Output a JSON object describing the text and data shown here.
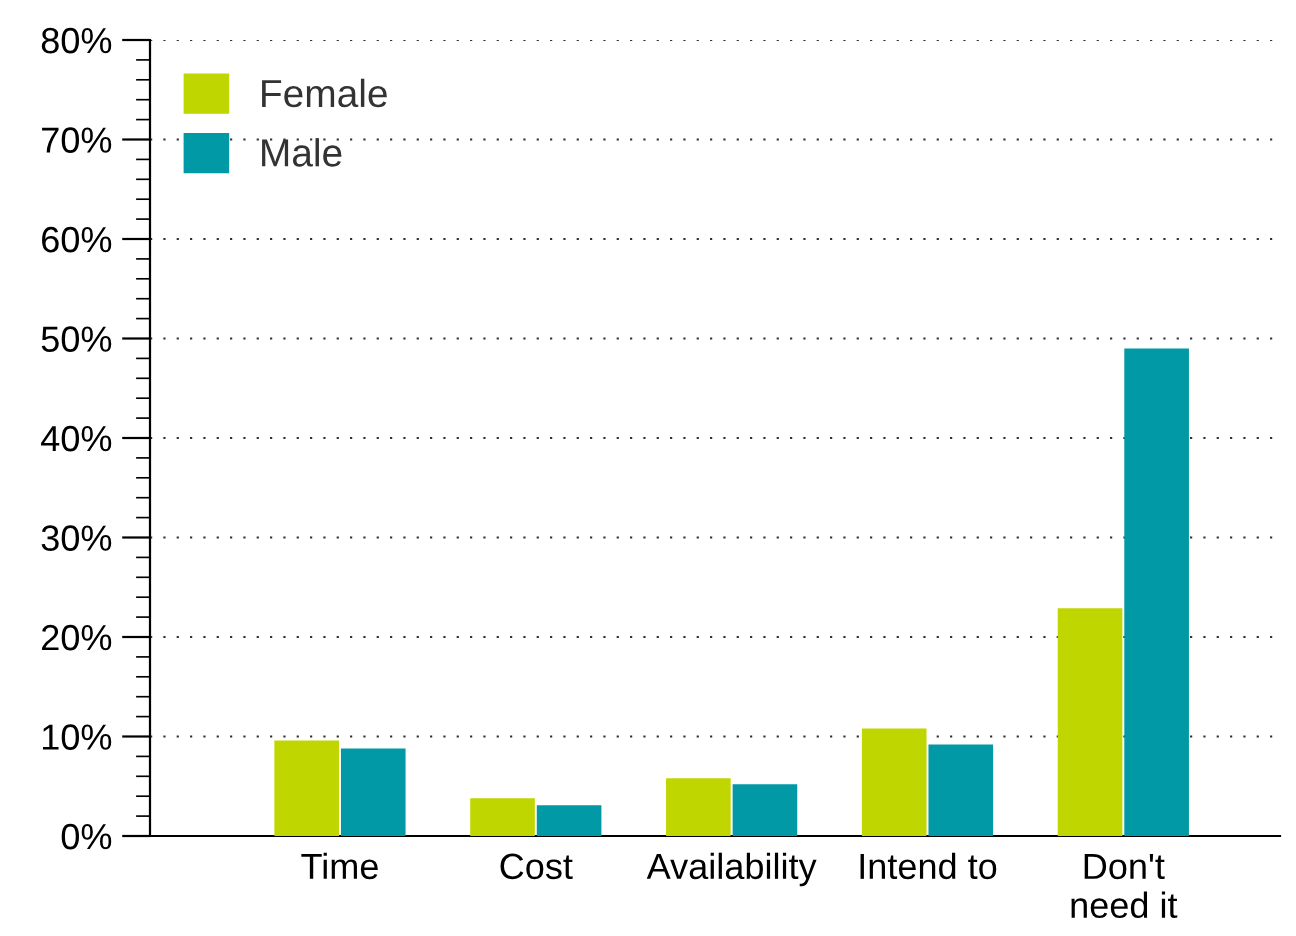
{
  "chart_data": {
    "type": "bar",
    "categories": [
      "Time",
      "Cost",
      "Availability",
      "Intend to",
      "Don't\nneed it"
    ],
    "series": [
      {
        "name": "Female",
        "color": "#bfd600",
        "values": [
          9.6,
          3.8,
          5.8,
          10.8,
          22.9
        ]
      },
      {
        "name": "Male",
        "color": "#0099a5",
        "values": [
          8.8,
          3.1,
          5.2,
          9.2,
          49.0
        ]
      }
    ],
    "ylim": [
      0,
      80
    ],
    "yticks": [
      {
        "value": 0,
        "label": "0%"
      },
      {
        "value": 10,
        "label": "10%"
      },
      {
        "value": 20,
        "label": "20%"
      },
      {
        "value": 30,
        "label": "30%"
      },
      {
        "value": 40,
        "label": "40%"
      },
      {
        "value": 50,
        "label": "50%"
      },
      {
        "value": 60,
        "label": "60%"
      },
      {
        "value": 70,
        "label": "70%"
      },
      {
        "value": 80,
        "label": "80%"
      }
    ],
    "grid": "y",
    "legend": "top left"
  }
}
